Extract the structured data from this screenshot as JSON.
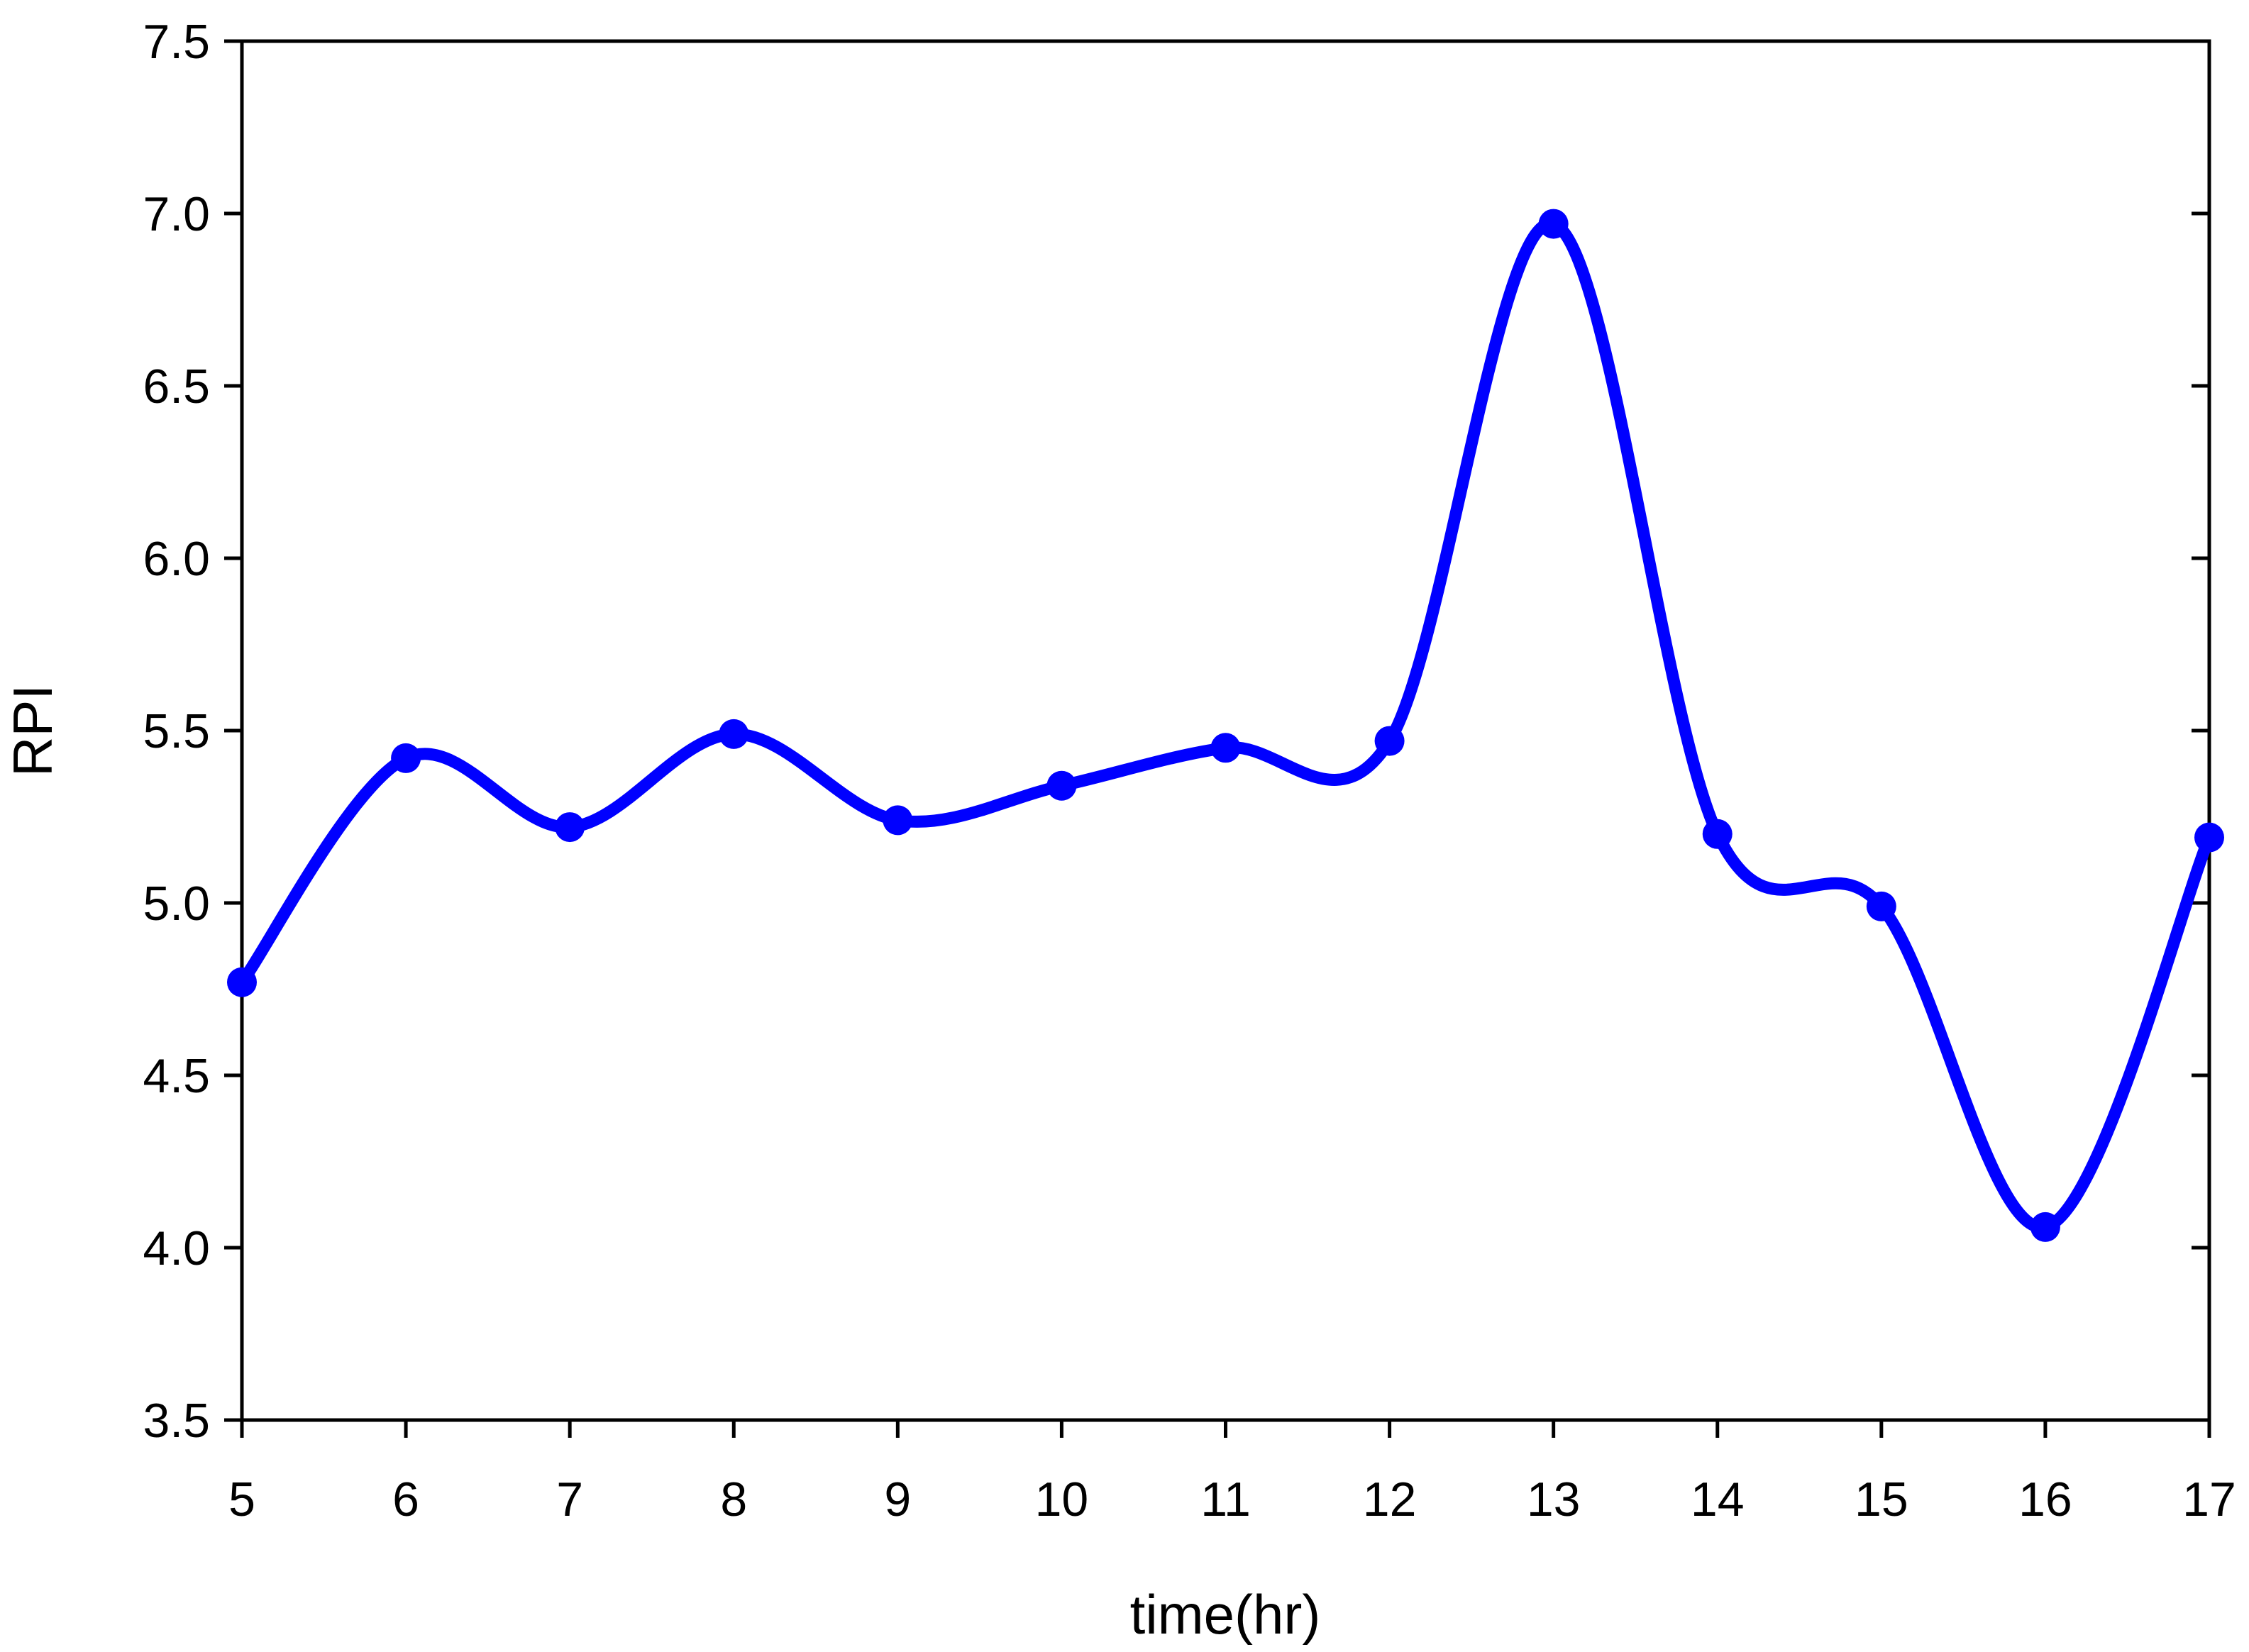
{
  "chart_data": {
    "type": "line",
    "xlabel": "time(hr)",
    "ylabel": "RPI",
    "xlim": [
      5,
      17
    ],
    "ylim": [
      3.5,
      7.5
    ],
    "x_ticks": [
      "5",
      "6",
      "7",
      "8",
      "9",
      "10",
      "11",
      "12",
      "13",
      "14",
      "15",
      "16",
      "17"
    ],
    "y_ticks": [
      "3.5",
      "4.0",
      "4.5",
      "5.0",
      "5.5",
      "6.0",
      "6.5",
      "7.0",
      "7.5"
    ],
    "grid": false,
    "smooth": true,
    "series": [
      {
        "color": "#0000FF",
        "marker": "circle",
        "x": [
          5,
          6,
          7,
          8,
          9,
          10,
          11,
          12,
          13,
          14,
          15,
          16,
          17
        ],
        "y": [
          4.77,
          5.42,
          5.22,
          5.49,
          5.24,
          5.34,
          5.45,
          5.47,
          6.97,
          5.2,
          4.99,
          4.06,
          5.19
        ]
      }
    ]
  }
}
